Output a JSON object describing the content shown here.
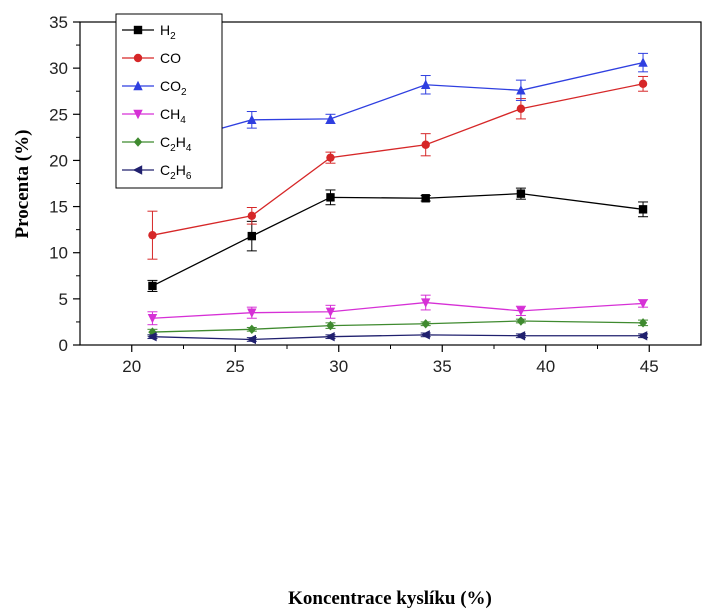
{
  "chart_data": {
    "type": "line",
    "xlabel": "Koncentrace kyslíku (%)",
    "ylabel": "Procenta (%)",
    "xlim": [
      17.5,
      47.5
    ],
    "ylim": [
      0,
      35
    ],
    "xticks": [
      20,
      25,
      30,
      35,
      40,
      45
    ],
    "yticks": [
      0,
      5,
      10,
      15,
      20,
      25,
      30,
      35
    ],
    "legend_position": "top-left",
    "grid": false,
    "x": [
      21,
      25.8,
      29.6,
      34.2,
      38.8,
      44.7
    ],
    "series": [
      {
        "name": "H2",
        "label_main": "H",
        "label_sub1": "2",
        "label_mid": "",
        "label_sub2": "",
        "color": "#000000",
        "marker": "square",
        "values": [
          6.4,
          11.8,
          16.0,
          15.9,
          16.4,
          14.7
        ],
        "errors": [
          0.6,
          1.6,
          0.8,
          0.3,
          0.6,
          0.8
        ]
      },
      {
        "name": "CO",
        "label_main": "CO",
        "label_sub1": "",
        "label_mid": "",
        "label_sub2": "",
        "color": "#d62728",
        "marker": "circle",
        "values": [
          11.9,
          14.0,
          20.3,
          21.7,
          25.6,
          28.3
        ],
        "errors": [
          2.6,
          0.9,
          0.6,
          1.2,
          1.1,
          0.8
        ]
      },
      {
        "name": "CO2",
        "label_main": "CO",
        "label_sub1": "2",
        "label_mid": "",
        "label_sub2": "",
        "color": "#2f3fe0",
        "marker": "triangle-up",
        "values": [
          21.4,
          24.4,
          24.5,
          28.2,
          27.6,
          30.6
        ],
        "errors": [
          1.4,
          0.9,
          0.5,
          1.0,
          1.1,
          1.0
        ]
      },
      {
        "name": "CH4",
        "label_main": "CH",
        "label_sub1": "4",
        "label_mid": "",
        "label_sub2": "",
        "color": "#d630d6",
        "marker": "triangle-down",
        "values": [
          2.9,
          3.5,
          3.6,
          4.6,
          3.7,
          4.5
        ],
        "errors": [
          0.7,
          0.6,
          0.7,
          0.8,
          0.5,
          0.4
        ]
      },
      {
        "name": "C2H4",
        "label_main": "C",
        "label_sub1": "2",
        "label_mid": "H",
        "label_sub2": "4",
        "color": "#3f8a2f",
        "marker": "diamond",
        "values": [
          1.4,
          1.7,
          2.1,
          2.3,
          2.6,
          2.4
        ],
        "errors": [
          0.3,
          0.2,
          0.3,
          0.2,
          0.2,
          0.3
        ]
      },
      {
        "name": "C2H6",
        "label_main": "C",
        "label_sub1": "2",
        "label_mid": "H",
        "label_sub2": "6",
        "color": "#20206e",
        "marker": "triangle-left",
        "values": [
          0.9,
          0.6,
          0.9,
          1.1,
          1.0,
          1.0
        ],
        "errors": [
          0.2,
          0.2,
          0.2,
          0.2,
          0.2,
          0.2
        ]
      }
    ]
  }
}
